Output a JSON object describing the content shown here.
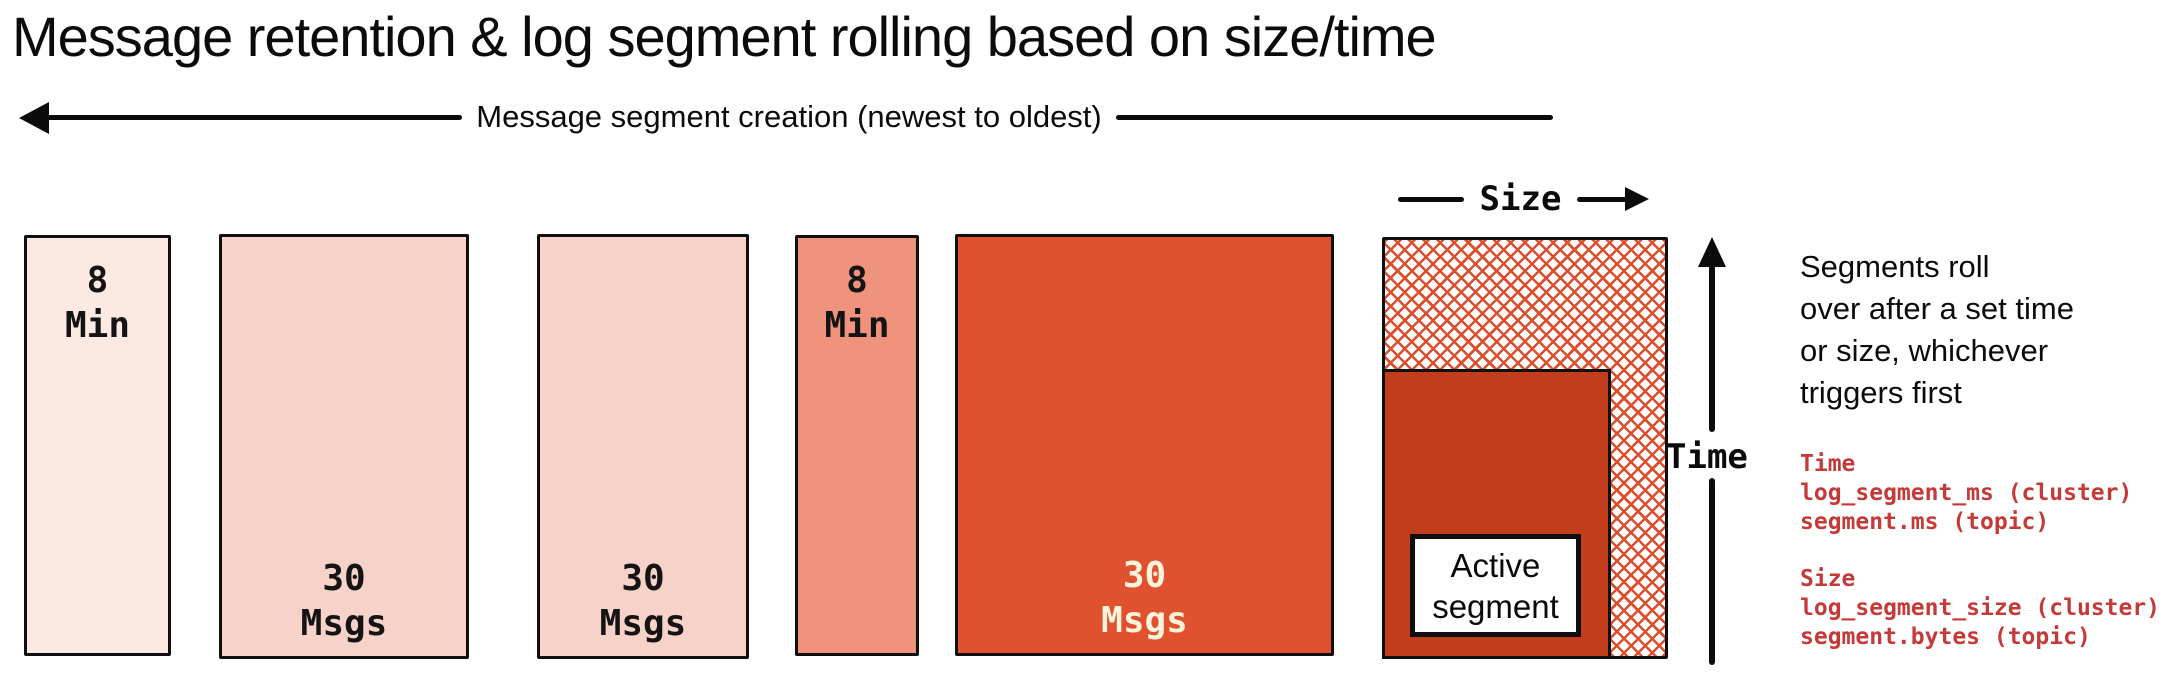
{
  "title": "Message retention & log segment rolling based on size/time",
  "creation_axis": {
    "label": "Message segment creation (newest to oldest)",
    "direction": "left"
  },
  "size_axis": {
    "label": "Size"
  },
  "time_axis": {
    "label": "Time"
  },
  "segments": [
    {
      "label": "8\nMin",
      "label_position": "top"
    },
    {
      "label": "30\nMsgs",
      "label_position": "bottom"
    },
    {
      "label": "30\nMsgs",
      "label_position": "bottom"
    },
    {
      "label": "8\nMin",
      "label_position": "top"
    },
    {
      "label": "30\nMsgs",
      "label_position": "bottom"
    }
  ],
  "active_segment": {
    "label": "Active\nsegment"
  },
  "note": "Segments roll\nover after a set time\nor size, whichever\ntriggers first",
  "config": {
    "time": {
      "heading": "Time",
      "cluster": "log_segment_ms (cluster)",
      "topic": "segment.ms (topic)"
    },
    "size": {
      "heading": "Size",
      "cluster": "log_segment_size (cluster)",
      "topic": "segment.bytes (topic)"
    }
  },
  "colors": {
    "segment_fills": [
      "#fbe9e2",
      "#f7d2c9",
      "#f7d2c9",
      "#f0937d",
      "#e0512f"
    ],
    "filled_segment": "#c23d1c",
    "hatch_line": "#dd4e2c",
    "cream_label": "#fcf4da",
    "config_text": "#c43a38",
    "ink": "#0b0b0b"
  }
}
